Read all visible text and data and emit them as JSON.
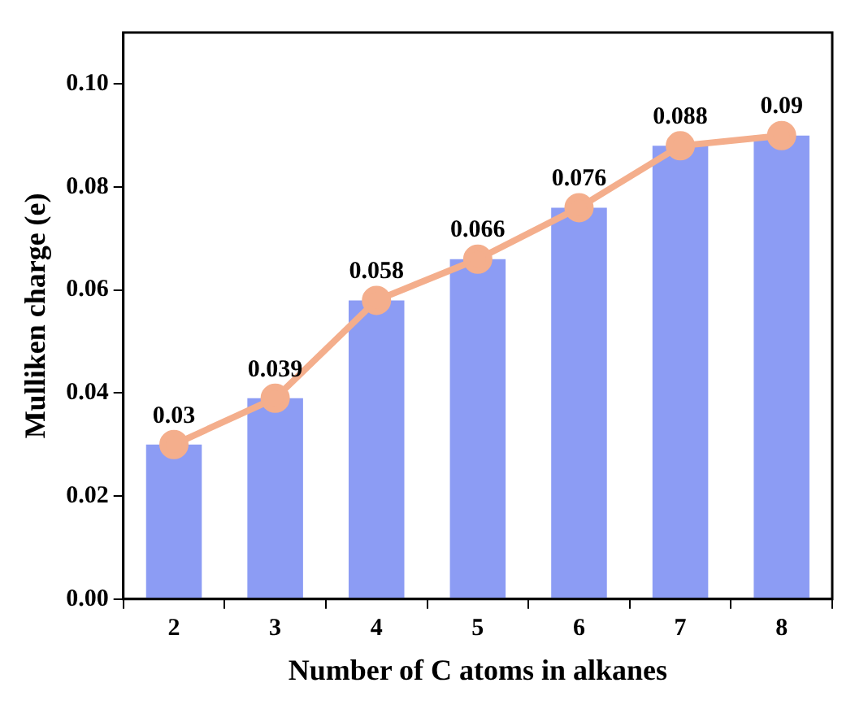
{
  "chart_data": {
    "type": "bar",
    "xlabel": "Number of C atoms in alkanes",
    "ylabel": "Mulliken charge (e)",
    "categories": [
      "2",
      "3",
      "4",
      "5",
      "6",
      "7",
      "8"
    ],
    "series": [
      {
        "color": "#8c9cf4",
        "values": [
          0.03,
          0.039,
          0.058,
          0.066,
          0.076,
          0.088,
          0.09
        ]
      },
      {
        "type": "line",
        "color": "#f4ae8c",
        "values": [
          0.03,
          0.039,
          0.058,
          0.066,
          0.076,
          0.088,
          0.09
        ],
        "value_labels": [
          "0.03",
          "0.039",
          "0.058",
          "0.066",
          "0.076",
          "0.088",
          "0.09"
        ]
      }
    ],
    "ylim": [
      0,
      0.11
    ],
    "yticks": [
      {
        "value": 0,
        "label": "0.00"
      },
      {
        "value": 0.02,
        "label": "0.02"
      },
      {
        "value": 0.04,
        "label": "0.04"
      },
      {
        "value": 0.06,
        "label": "0.06"
      },
      {
        "value": 0.08,
        "label": "0.08"
      },
      {
        "value": 0.1,
        "label": "0.10"
      }
    ],
    "marker": "circle",
    "line_style": "solid",
    "grid": false,
    "legend": false
  }
}
